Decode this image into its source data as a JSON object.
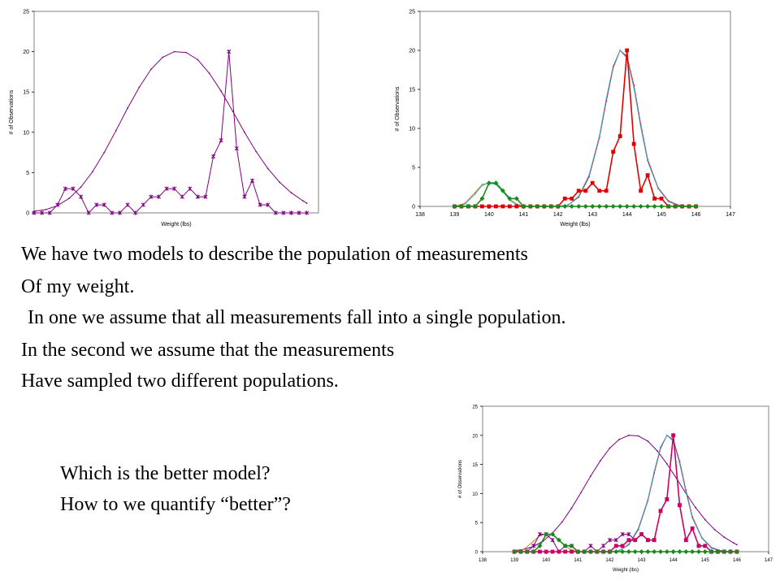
{
  "text": {
    "line1": "We have two models to describe the population of measurements",
    "line2": "Of my weight.",
    "line3": "In one we assume that all measurements fall into a single population.",
    "line4": "In the second we assume that the measurements",
    "line5": "Have sampled two different populations.",
    "question1": "Which is the better model?",
    "question2": "How to we quantify “better”?"
  },
  "colors": {
    "purple": "#800080",
    "red": "#e00000",
    "green": "#1a8a1a",
    "cyan": "#33aacc",
    "orange": "#e08020",
    "magenta": "#cc0066"
  },
  "chart_data": [
    {
      "type": "line",
      "xlabel": "Weight (lbs)",
      "ylabel": "# of Observations",
      "ylim": [
        0,
        25
      ],
      "yticks": [
        "0",
        "5",
        "10",
        "15",
        "20",
        "25"
      ],
      "grid": false,
      "series": [
        {
          "color": "#800080",
          "marker": "none",
          "x": [
            139.0,
            139.3,
            139.6,
            139.9,
            140.2,
            140.5,
            140.8,
            141.1,
            141.4,
            141.7,
            142.0,
            142.3,
            142.6,
            142.9,
            143.2,
            143.5,
            143.8,
            144.1,
            144.4,
            144.7,
            145.0,
            145.3,
            145.6,
            145.9,
            146.0
          ],
          "y": [
            0.2,
            0.4,
            0.9,
            1.8,
            3.2,
            5.1,
            7.5,
            10.2,
            13.0,
            15.6,
            17.8,
            19.3,
            20.0,
            19.9,
            19.0,
            17.3,
            15.1,
            12.6,
            10.0,
            7.6,
            5.5,
            3.8,
            2.5,
            1.5,
            1.2
          ]
        },
        {
          "color": "#800080",
          "marker": "x",
          "x": [
            139.0,
            139.2,
            139.4,
            139.6,
            139.8,
            140.0,
            140.2,
            140.4,
            140.6,
            140.8,
            141.0,
            141.2,
            141.4,
            141.6,
            141.8,
            142.0,
            142.2,
            142.4,
            142.6,
            142.8,
            143.0,
            143.2,
            143.4,
            143.6,
            143.8,
            144.0,
            144.2,
            144.4,
            144.6,
            144.8,
            145.0,
            145.2,
            145.4,
            145.6,
            145.8,
            146.0
          ],
          "y": [
            0,
            0,
            0,
            1,
            3,
            3,
            2,
            0,
            1,
            1,
            0,
            0,
            1,
            0,
            1,
            2,
            2,
            3,
            3,
            2,
            3,
            2,
            2,
            7,
            9,
            20,
            8,
            2,
            4,
            1,
            1,
            0,
            0,
            0,
            0,
            0
          ]
        }
      ]
    },
    {
      "type": "line",
      "xlabel": "Weight (lbs)",
      "ylabel": "# of Observations",
      "ylim": [
        0,
        25
      ],
      "xlim": [
        138,
        147
      ],
      "xticks": [
        "138",
        "139",
        "140",
        "141",
        "142",
        "143",
        "144",
        "145",
        "146",
        "147"
      ],
      "yticks": [
        "0",
        "5",
        "10",
        "15",
        "20",
        "25"
      ],
      "grid": false,
      "series": [
        {
          "color": "#e00000",
          "marker": "none",
          "x": [
            142.0,
            142.3,
            142.6,
            142.9,
            143.2,
            143.4,
            143.6,
            143.8,
            144.0,
            144.2,
            144.4,
            144.6,
            144.9,
            145.2,
            145.5,
            145.8,
            146.0
          ],
          "y": [
            0,
            0.2,
            1.2,
            3.8,
            8.8,
            13.5,
            17.8,
            20.0,
            19.2,
            15.5,
            10.5,
            6.0,
            2.4,
            0.7,
            0.15,
            0,
            0
          ]
        },
        {
          "color": "#33aacc",
          "marker": "none",
          "x": [
            142.0,
            142.3,
            142.6,
            142.9,
            143.2,
            143.4,
            143.6,
            143.8,
            144.0,
            144.2,
            144.4,
            144.6,
            144.9,
            145.2,
            145.5,
            145.8,
            146.0
          ],
          "y": [
            0,
            0.2,
            1.3,
            4.0,
            9.0,
            13.8,
            18.0,
            20.0,
            19.0,
            15.2,
            10.2,
            5.8,
            2.3,
            0.6,
            0.1,
            0,
            0
          ]
        },
        {
          "color": "#e08020",
          "marker": "none",
          "x": [
            139.0,
            139.3,
            139.6,
            139.8,
            140.0,
            140.2,
            140.4,
            140.6,
            140.8,
            141.0
          ],
          "y": [
            0,
            0.4,
            1.8,
            2.8,
            3.0,
            2.9,
            2.0,
            0.9,
            0.3,
            0.05
          ]
        },
        {
          "color": "#33aacc",
          "marker": "none",
          "x": [
            139.0,
            139.3,
            139.6,
            139.8,
            140.0,
            140.2,
            140.4,
            140.6,
            140.8,
            141.0
          ],
          "y": [
            0,
            0.3,
            1.6,
            2.7,
            3.0,
            2.8,
            1.9,
            0.8,
            0.2,
            0.0
          ]
        },
        {
          "color": "#e00000",
          "marker": "square",
          "x": [
            139.0,
            139.2,
            139.4,
            139.6,
            139.8,
            140.0,
            140.2,
            140.4,
            140.6,
            140.8,
            141.0,
            141.2,
            141.4,
            141.6,
            141.8,
            142.0,
            142.2,
            142.4,
            142.6,
            142.8,
            143.0,
            143.2,
            143.4,
            143.6,
            143.8,
            144.0,
            144.2,
            144.4,
            144.6,
            144.8,
            145.0,
            145.2,
            145.4,
            145.6,
            145.8,
            146.0
          ],
          "y": [
            0,
            0,
            0,
            0,
            0,
            0,
            0,
            0,
            0,
            0,
            0,
            0,
            0,
            0,
            0,
            0,
            1,
            1,
            2,
            2,
            3,
            2,
            2,
            7,
            9,
            20,
            8,
            2,
            4,
            1,
            1,
            0,
            0,
            0,
            0,
            0
          ]
        },
        {
          "color": "#1a8a1a",
          "marker": "diamond",
          "x": [
            139.0,
            139.2,
            139.4,
            139.6,
            139.8,
            140.0,
            140.2,
            140.4,
            140.6,
            140.8,
            141.0,
            141.2,
            141.4,
            141.6,
            141.8,
            142.0,
            142.2,
            142.4,
            142.6,
            142.8,
            143.0,
            143.2,
            143.4,
            143.6,
            143.8,
            144.0,
            144.2,
            144.4,
            144.6,
            144.8,
            145.0,
            145.2,
            145.4,
            145.6,
            145.8,
            146.0
          ],
          "y": [
            0,
            0,
            0,
            0,
            1,
            3,
            3,
            2,
            1,
            1,
            0,
            0,
            0,
            0,
            0,
            0,
            0,
            0,
            0,
            0,
            0,
            0,
            0,
            0,
            0,
            0,
            0,
            0,
            0,
            0,
            0,
            0,
            0,
            0,
            0,
            0
          ]
        }
      ]
    },
    {
      "type": "line",
      "xlabel": "Weight (lbs)",
      "ylabel": "# of Observations",
      "ylim": [
        0,
        25
      ],
      "xlim": [
        138,
        147
      ],
      "xticks": [
        "138",
        "139",
        "140",
        "141",
        "142",
        "143",
        "144",
        "145",
        "146",
        "147"
      ],
      "yticks": [
        "0",
        "5",
        "10",
        "15",
        "20",
        "25"
      ],
      "grid": false,
      "series": [
        {
          "color": "#800080",
          "marker": "none",
          "x": [
            139.0,
            139.3,
            139.6,
            139.9,
            140.2,
            140.5,
            140.8,
            141.1,
            141.4,
            141.7,
            142.0,
            142.3,
            142.6,
            142.9,
            143.2,
            143.5,
            143.8,
            144.1,
            144.4,
            144.7,
            145.0,
            145.3,
            145.6,
            145.9,
            146.0
          ],
          "y": [
            0.2,
            0.4,
            0.9,
            1.8,
            3.2,
            5.1,
            7.5,
            10.2,
            13.0,
            15.6,
            17.8,
            19.3,
            20.0,
            19.9,
            19.0,
            17.3,
            15.1,
            12.6,
            10.0,
            7.6,
            5.5,
            3.8,
            2.5,
            1.5,
            1.2
          ]
        },
        {
          "color": "#e00000",
          "marker": "none",
          "x": [
            142.0,
            142.3,
            142.6,
            142.9,
            143.2,
            143.4,
            143.6,
            143.8,
            144.0,
            144.2,
            144.4,
            144.6,
            144.9,
            145.2,
            145.5,
            145.8,
            146.0
          ],
          "y": [
            0,
            0.2,
            1.2,
            3.8,
            8.8,
            13.5,
            17.8,
            20.0,
            19.2,
            15.5,
            10.5,
            6.0,
            2.4,
            0.7,
            0.15,
            0,
            0
          ]
        },
        {
          "color": "#33aacc",
          "marker": "none",
          "x": [
            142.0,
            142.3,
            142.6,
            142.9,
            143.2,
            143.4,
            143.6,
            143.8,
            144.0,
            144.2,
            144.4,
            144.6,
            144.9,
            145.2,
            145.5,
            145.8,
            146.0
          ],
          "y": [
            0,
            0.2,
            1.3,
            4.0,
            9.0,
            13.8,
            18.0,
            20.0,
            19.0,
            15.2,
            10.2,
            5.8,
            2.3,
            0.6,
            0.1,
            0,
            0
          ]
        },
        {
          "color": "#e08020",
          "marker": "none",
          "x": [
            139.0,
            139.3,
            139.6,
            139.8,
            140.0,
            140.2,
            140.4,
            140.6,
            140.8,
            141.0
          ],
          "y": [
            0,
            0.4,
            1.8,
            2.8,
            3.0,
            2.9,
            2.0,
            0.9,
            0.3,
            0.05
          ]
        },
        {
          "color": "#800080",
          "marker": "x",
          "x": [
            139.0,
            139.2,
            139.4,
            139.6,
            139.8,
            140.0,
            140.2,
            140.4,
            140.6,
            140.8,
            141.0,
            141.2,
            141.4,
            141.6,
            141.8,
            142.0,
            142.2,
            142.4,
            142.6,
            142.8,
            143.0,
            143.2,
            143.4,
            143.6,
            143.8,
            144.0,
            144.2,
            144.4,
            144.6,
            144.8,
            145.0,
            145.2,
            145.4,
            145.6,
            145.8,
            146.0
          ],
          "y": [
            0,
            0,
            0,
            1,
            3,
            3,
            2,
            0,
            1,
            1,
            0,
            0,
            1,
            0,
            1,
            2,
            2,
            3,
            3,
            2,
            3,
            2,
            2,
            7,
            9,
            20,
            8,
            2,
            4,
            1,
            1,
            0,
            0,
            0,
            0,
            0
          ]
        },
        {
          "color": "#cc0066",
          "marker": "square",
          "x": [
            139.0,
            139.2,
            139.4,
            139.6,
            139.8,
            140.0,
            140.2,
            140.4,
            140.6,
            140.8,
            141.0,
            141.2,
            141.4,
            141.6,
            141.8,
            142.0,
            142.2,
            142.4,
            142.6,
            142.8,
            143.0,
            143.2,
            143.4,
            143.6,
            143.8,
            144.0,
            144.2,
            144.4,
            144.6,
            144.8,
            145.0,
            145.2,
            145.4,
            145.6,
            145.8,
            146.0
          ],
          "y": [
            0,
            0,
            0,
            0,
            0,
            0,
            0,
            0,
            0,
            0,
            0,
            0,
            0,
            0,
            0,
            0,
            1,
            1,
            2,
            2,
            3,
            2,
            2,
            7,
            9,
            20,
            8,
            2,
            4,
            1,
            1,
            0,
            0,
            0,
            0,
            0
          ]
        },
        {
          "color": "#1a8a1a",
          "marker": "diamond",
          "x": [
            139.0,
            139.2,
            139.4,
            139.6,
            139.8,
            140.0,
            140.2,
            140.4,
            140.6,
            140.8,
            141.0,
            141.2,
            141.4,
            141.6,
            141.8,
            142.0,
            142.2,
            142.4,
            142.6,
            142.8,
            143.0,
            143.2,
            143.4,
            143.6,
            143.8,
            144.0,
            144.2,
            144.4,
            144.6,
            144.8,
            145.0,
            145.2,
            145.4,
            145.6,
            145.8,
            146.0
          ],
          "y": [
            0,
            0,
            0,
            0,
            1,
            3,
            3,
            2,
            1,
            1,
            0,
            0,
            0,
            0,
            0,
            0,
            0,
            0,
            0,
            0,
            0,
            0,
            0,
            0,
            0,
            0,
            0,
            0,
            0,
            0,
            0,
            0,
            0,
            0,
            0,
            0
          ]
        }
      ]
    }
  ]
}
